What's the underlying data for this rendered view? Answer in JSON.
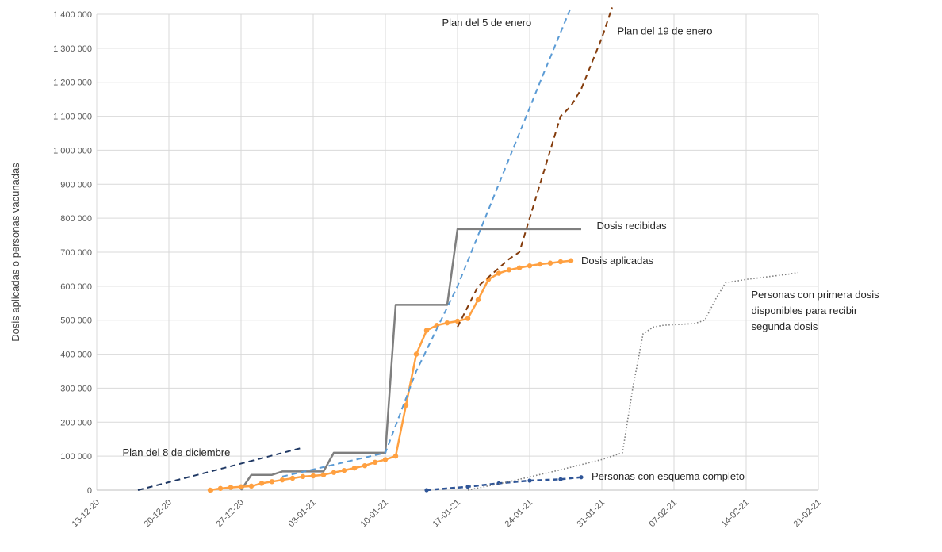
{
  "chart_data": {
    "type": "line",
    "ylabel": "Dosis aplicadas o personas vacunadas",
    "xlabel": "",
    "y_ticks": [
      "0",
      "100 000",
      "200 000",
      "300 000",
      "400 000",
      "500 000",
      "600 000",
      "700 000",
      "800 000",
      "900 000",
      "1 000 000",
      "1 100 000",
      "1 200 000",
      "1 300 000",
      "1 400 000"
    ],
    "x_ticks": [
      "13-12-20",
      "20-12-20",
      "27-12-20",
      "03-01-21",
      "10-01-21",
      "17-01-21",
      "24-01-21",
      "31-01-21",
      "07-02-21",
      "14-02-21",
      "21-02-21"
    ],
    "x_range_days": [
      0,
      70
    ],
    "ylim": [
      0,
      1400000
    ],
    "grid": true,
    "legend": "none",
    "series": [
      {
        "name": "Dosis recibidas",
        "color": "#7f7f7f",
        "style": "solid",
        "points": [
          [
            14,
            0
          ],
          [
            15,
            45000
          ],
          [
            17,
            45000
          ],
          [
            18,
            55000
          ],
          [
            22,
            55000
          ],
          [
            23,
            110000
          ],
          [
            28,
            110000
          ],
          [
            29,
            545000
          ],
          [
            34,
            545000
          ],
          [
            35,
            768000
          ],
          [
            47,
            768000
          ]
        ]
      },
      {
        "name": "Dosis aplicadas",
        "color": "#ffa040",
        "style": "solid-markers",
        "points": [
          [
            11,
            0
          ],
          [
            12,
            5000
          ],
          [
            13,
            8000
          ],
          [
            14,
            10000
          ],
          [
            15,
            12000
          ],
          [
            16,
            20000
          ],
          [
            17,
            25000
          ],
          [
            18,
            30000
          ],
          [
            19,
            35000
          ],
          [
            20,
            40000
          ],
          [
            21,
            42000
          ],
          [
            22,
            45000
          ],
          [
            23,
            52000
          ],
          [
            24,
            58000
          ],
          [
            25,
            65000
          ],
          [
            26,
            72000
          ],
          [
            27,
            82000
          ],
          [
            28,
            90000
          ],
          [
            29,
            100000
          ],
          [
            30,
            250000
          ],
          [
            31,
            400000
          ],
          [
            32,
            470000
          ],
          [
            33,
            485000
          ],
          [
            34,
            492000
          ],
          [
            35,
            497000
          ],
          [
            36,
            505000
          ],
          [
            37,
            560000
          ],
          [
            38,
            620000
          ],
          [
            39,
            638000
          ],
          [
            40,
            648000
          ],
          [
            41,
            654000
          ],
          [
            42,
            660000
          ],
          [
            43,
            665000
          ],
          [
            44,
            668000
          ],
          [
            45,
            672000
          ],
          [
            46,
            675000
          ]
        ]
      },
      {
        "name": "Plan del 8 de diciembre",
        "color": "#1f3864",
        "style": "dashed",
        "points": [
          [
            4,
            0
          ],
          [
            20,
            125000
          ]
        ]
      },
      {
        "name": "Plan del 5 de enero",
        "color": "#5b9bd5",
        "style": "dashed",
        "points": [
          [
            18,
            40000
          ],
          [
            28,
            110000
          ],
          [
            31,
            350000
          ],
          [
            35,
            600000
          ],
          [
            39,
            900000
          ],
          [
            43,
            1200000
          ],
          [
            46,
            1420000
          ]
        ]
      },
      {
        "name": "Plan del 19 de enero",
        "color": "#843c0c",
        "style": "dashed",
        "points": [
          [
            35,
            480000
          ],
          [
            37,
            600000
          ],
          [
            40,
            680000
          ],
          [
            41,
            700000
          ],
          [
            43,
            900000
          ],
          [
            45,
            1100000
          ],
          [
            46,
            1130000
          ],
          [
            47,
            1180000
          ],
          [
            49,
            1330000
          ],
          [
            50,
            1420000
          ]
        ]
      },
      {
        "name": "Personas con esquema completo",
        "color": "#2f5597",
        "style": "dashed-markers",
        "points": [
          [
            32,
            0
          ],
          [
            36,
            10000
          ],
          [
            39,
            20000
          ],
          [
            42,
            28000
          ],
          [
            45,
            32000
          ],
          [
            47,
            38000
          ]
        ]
      },
      {
        "name": "Personas con primera dosis disponibles para recibir segunda dosis",
        "color": "#808080",
        "style": "dotted",
        "points": [
          [
            36,
            0
          ],
          [
            40,
            25000
          ],
          [
            45,
            60000
          ],
          [
            49,
            90000
          ],
          [
            51,
            110000
          ],
          [
            52,
            300000
          ],
          [
            53,
            460000
          ],
          [
            54,
            480000
          ],
          [
            55,
            485000
          ],
          [
            58,
            490000
          ],
          [
            59,
            500000
          ],
          [
            60,
            560000
          ],
          [
            61,
            610000
          ],
          [
            63,
            620000
          ],
          [
            67,
            635000
          ],
          [
            68,
            640000
          ]
        ]
      }
    ],
    "annotations": [
      {
        "lines": [
          "Plan del 5 de enero"
        ],
        "at": [
          33.5,
          1365000
        ]
      },
      {
        "lines": [
          "Plan del 19 de enero"
        ],
        "at": [
          50.5,
          1340000
        ]
      },
      {
        "lines": [
          "Dosis recibidas"
        ],
        "at": [
          48.5,
          768000
        ]
      },
      {
        "lines": [
          "Dosis aplicadas"
        ],
        "at": [
          47,
          665000
        ]
      },
      {
        "lines": [
          "Personas con primera dosis",
          "disponibles para recibir",
          "segunda dosis"
        ],
        "at": [
          63.5,
          565000
        ]
      },
      {
        "lines": [
          "Plan del 8 de diciembre"
        ],
        "at": [
          2.5,
          100000
        ]
      },
      {
        "lines": [
          "Personas con esquema completo"
        ],
        "at": [
          48,
          30000
        ]
      }
    ]
  }
}
